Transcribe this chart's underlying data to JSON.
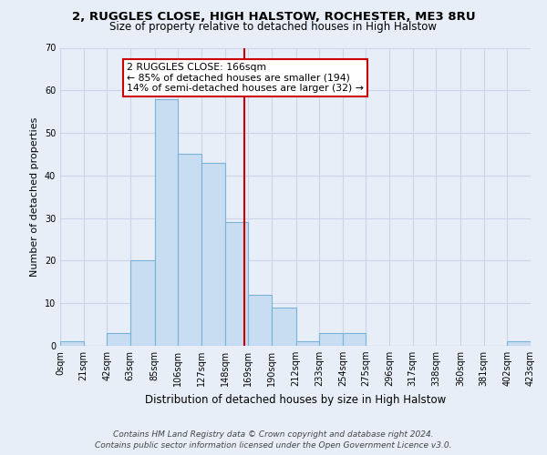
{
  "title": "2, RUGGLES CLOSE, HIGH HALSTOW, ROCHESTER, ME3 8RU",
  "subtitle": "Size of property relative to detached houses in High Halstow",
  "xlabel": "Distribution of detached houses by size in High Halstow",
  "ylabel": "Number of detached properties",
  "footer_line1": "Contains HM Land Registry data © Crown copyright and database right 2024.",
  "footer_line2": "Contains public sector information licensed under the Open Government Licence v3.0.",
  "bin_labels": [
    "0sqm",
    "21sqm",
    "42sqm",
    "63sqm",
    "85sqm",
    "106sqm",
    "127sqm",
    "148sqm",
    "169sqm",
    "190sqm",
    "212sqm",
    "233sqm",
    "254sqm",
    "275sqm",
    "296sqm",
    "317sqm",
    "338sqm",
    "360sqm",
    "381sqm",
    "402sqm",
    "423sqm"
  ],
  "bin_edges": [
    0,
    21,
    42,
    63,
    85,
    106,
    127,
    148,
    169,
    190,
    212,
    233,
    254,
    275,
    296,
    317,
    338,
    360,
    381,
    402,
    423
  ],
  "bar_values": [
    1,
    0,
    3,
    20,
    58,
    45,
    43,
    29,
    12,
    9,
    1,
    3,
    3,
    0,
    0,
    0,
    0,
    0,
    0,
    1
  ],
  "bar_color": "#c9ddf2",
  "bar_edge_color": "#7ab3d8",
  "property_size": 166,
  "vline_color": "#cc0000",
  "annotation_line1": "2 RUGGLES CLOSE: 166sqm",
  "annotation_line2": "← 85% of detached houses are smaller (194)",
  "annotation_line3": "14% of semi-detached houses are larger (32) →",
  "annotation_box_color": "white",
  "annotation_box_edge": "#cc0000",
  "ylim": [
    0,
    70
  ],
  "yticks": [
    0,
    10,
    20,
    30,
    40,
    50,
    60,
    70
  ],
  "grid_color": "#ccd5e8",
  "background_color": "#e8eef8",
  "title_fontsize": 9.5,
  "subtitle_fontsize": 8.5,
  "ylabel_fontsize": 8,
  "xlabel_fontsize": 8.5,
  "tick_fontsize": 7,
  "footer_fontsize": 6.5,
  "annot_fontsize": 7.8
}
